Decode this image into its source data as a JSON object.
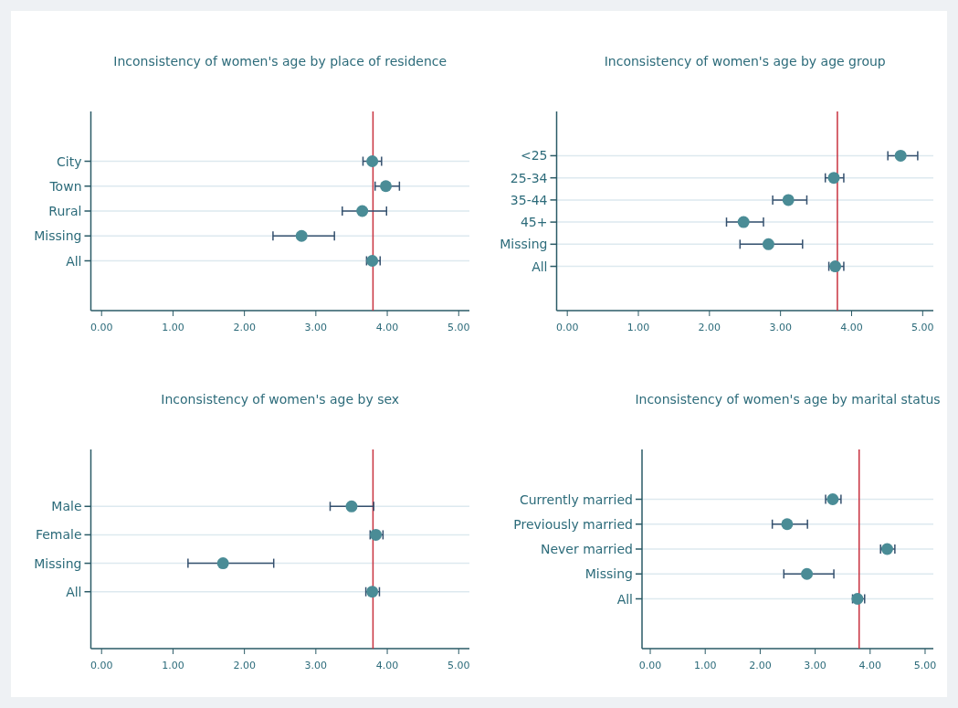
{
  "chart_data": [
    {
      "type": "scatter",
      "orientation": "horizontal",
      "title": "Inconsistency of women's age by place of residence",
      "categories": [
        "City",
        "Town",
        "Rural",
        "Missing",
        "All"
      ],
      "values": [
        3.79,
        3.98,
        3.65,
        2.8,
        3.79
      ],
      "errors": [
        [
          3.66,
          3.92
        ],
        [
          3.83,
          4.17
        ],
        [
          3.37,
          3.99
        ],
        [
          2.4,
          3.26
        ],
        [
          3.71,
          3.9
        ]
      ],
      "color": "#4a8c96",
      "marker": "circle",
      "xlim": [
        -0.15,
        5.15
      ],
      "xticks": [
        {
          "value": 0,
          "label": "0.00"
        },
        {
          "value": 1,
          "label": "1.00"
        },
        {
          "value": 2,
          "label": "2.00"
        },
        {
          "value": 3,
          "label": "3.00"
        },
        {
          "value": 4,
          "label": "4.00"
        },
        {
          "value": 5,
          "label": "5.00"
        }
      ],
      "grid": "y",
      "ref_lines": [
        {
          "axis": "x",
          "value": 3.8,
          "color": "#c8313f"
        }
      ]
    },
    {
      "type": "scatter",
      "orientation": "horizontal",
      "title": "Inconsistency of women's age by age group",
      "categories": [
        "<25",
        "25-34",
        "35-44",
        "45+",
        "Missing",
        "All"
      ],
      "values": [
        4.69,
        3.75,
        3.11,
        2.48,
        2.83,
        3.77
      ],
      "errors": [
        [
          4.51,
          4.93
        ],
        [
          3.63,
          3.89
        ],
        [
          2.89,
          3.37
        ],
        [
          2.24,
          2.76
        ],
        [
          2.43,
          3.31
        ],
        [
          3.68,
          3.89
        ]
      ],
      "color": "#4a8c96",
      "marker": "circle",
      "xlim": [
        -0.15,
        5.15
      ],
      "xticks": [
        {
          "value": 0,
          "label": "0.00"
        },
        {
          "value": 1,
          "label": "1.00"
        },
        {
          "value": 2,
          "label": "2.00"
        },
        {
          "value": 3,
          "label": "3.00"
        },
        {
          "value": 4,
          "label": "4.00"
        },
        {
          "value": 5,
          "label": "5.00"
        }
      ],
      "grid": "y",
      "ref_lines": [
        {
          "axis": "x",
          "value": 3.8,
          "color": "#c8313f"
        }
      ]
    },
    {
      "type": "scatter",
      "orientation": "horizontal",
      "title": "Inconsistency of women's age by sex",
      "categories": [
        "Male",
        "Female",
        "Missing",
        "All"
      ],
      "values": [
        3.5,
        3.84,
        1.7,
        3.79
      ],
      "errors": [
        [
          3.2,
          3.81
        ],
        [
          3.76,
          3.94
        ],
        [
          1.21,
          2.41
        ],
        [
          3.7,
          3.89
        ]
      ],
      "color": "#4a8c96",
      "marker": "circle",
      "xlim": [
        -0.15,
        5.15
      ],
      "xticks": [
        {
          "value": 0,
          "label": "0.00"
        },
        {
          "value": 1,
          "label": "1.00"
        },
        {
          "value": 2,
          "label": "2.00"
        },
        {
          "value": 3,
          "label": "3.00"
        },
        {
          "value": 4,
          "label": "4.00"
        },
        {
          "value": 5,
          "label": "5.00"
        }
      ],
      "grid": "y",
      "ref_lines": [
        {
          "axis": "x",
          "value": 3.8,
          "color": "#c8313f"
        }
      ]
    },
    {
      "type": "scatter",
      "orientation": "horizontal",
      "title": "Inconsistency of women's age by marital status",
      "categories": [
        "Currently married",
        "Previously married",
        "Never married",
        "Missing",
        "All"
      ],
      "values": [
        3.32,
        2.49,
        4.31,
        2.85,
        3.77
      ],
      "errors": [
        [
          3.19,
          3.47
        ],
        [
          2.22,
          2.86
        ],
        [
          4.19,
          4.45
        ],
        [
          2.43,
          3.34
        ],
        [
          3.68,
          3.9
        ]
      ],
      "color": "#4a8c96",
      "marker": "circle",
      "xlim": [
        -0.15,
        5.15
      ],
      "xticks": [
        {
          "value": 0,
          "label": "0.00"
        },
        {
          "value": 1,
          "label": "1.00"
        },
        {
          "value": 2,
          "label": "2.00"
        },
        {
          "value": 3,
          "label": "3.00"
        },
        {
          "value": 4,
          "label": "4.00"
        },
        {
          "value": 5,
          "label": "5.00"
        }
      ],
      "grid": "y",
      "ref_lines": [
        {
          "axis": "x",
          "value": 3.8,
          "color": "#c8313f"
        }
      ]
    }
  ]
}
